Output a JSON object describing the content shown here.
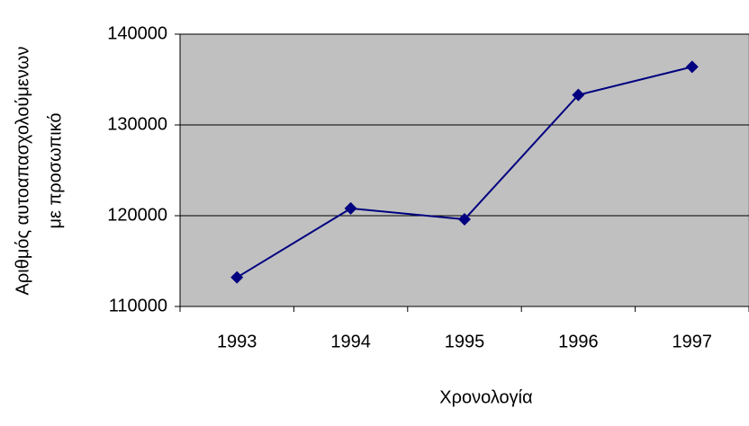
{
  "chart_data": {
    "type": "line",
    "x_label": "Χρονολογία",
    "y_label": [
      "Αριθμός αυτοαπασχολούμενων",
      "με προσωπικό"
    ],
    "categories": [
      "1993",
      "1994",
      "1995",
      "1996",
      "1997"
    ],
    "values": [
      113200,
      120800,
      119600,
      133300,
      136400
    ],
    "color": "#000080",
    "ylim": [
      110000,
      140000
    ],
    "yticks": [
      110000,
      120000,
      130000,
      140000
    ],
    "grid": true
  }
}
